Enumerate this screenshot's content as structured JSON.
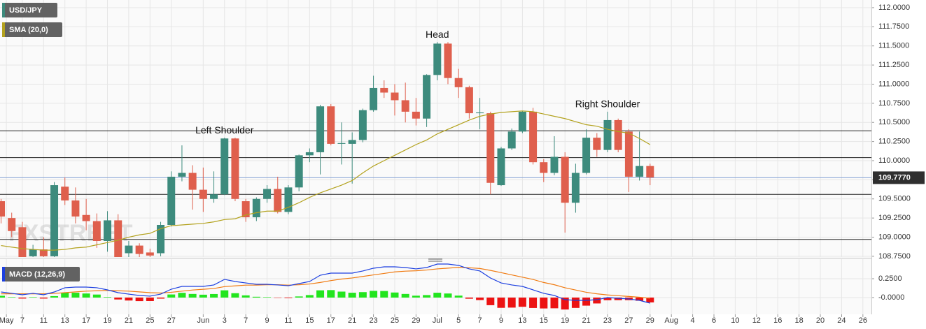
{
  "chart_data": [
    {
      "type": "candlestick",
      "watermark": "FXSTREET",
      "x": [
        -2,
        -1,
        0,
        1,
        2,
        3,
        4,
        5,
        6,
        7,
        8,
        9,
        10,
        11,
        12,
        13,
        14,
        15,
        16,
        17,
        18,
        19,
        20,
        21,
        22,
        23,
        24,
        25,
        26,
        27,
        28,
        29,
        30,
        31,
        32,
        33,
        34,
        35,
        36,
        37,
        38,
        39,
        40,
        41,
        42,
        43,
        44,
        45,
        46,
        47,
        48,
        49,
        50,
        51,
        52,
        53,
        54,
        55,
        56,
        57,
        58,
        59
      ],
      "xlim": [
        -2.1,
        79.8
      ],
      "xticks": [
        {
          "value": -1.5,
          "label": "May"
        },
        {
          "value": 0,
          "label": "7"
        },
        {
          "value": 2,
          "label": "11"
        },
        {
          "value": 4,
          "label": "13"
        },
        {
          "value": 6,
          "label": "17"
        },
        {
          "value": 8,
          "label": "19"
        },
        {
          "value": 10,
          "label": "21"
        },
        {
          "value": 12,
          "label": "25"
        },
        {
          "value": 14,
          "label": "27"
        },
        {
          "value": 17,
          "label": "Jun"
        },
        {
          "value": 19,
          "label": "3"
        },
        {
          "value": 21,
          "label": "7"
        },
        {
          "value": 23,
          "label": "9"
        },
        {
          "value": 25,
          "label": "11"
        },
        {
          "value": 27,
          "label": "15"
        },
        {
          "value": 29,
          "label": "17"
        },
        {
          "value": 31,
          "label": "21"
        },
        {
          "value": 33,
          "label": "23"
        },
        {
          "value": 35,
          "label": "25"
        },
        {
          "value": 37,
          "label": "29"
        },
        {
          "value": 39,
          "label": "Jul"
        },
        {
          "value": 41,
          "label": "5"
        },
        {
          "value": 43,
          "label": "7"
        },
        {
          "value": 45,
          "label": "9"
        },
        {
          "value": 47,
          "label": "13"
        },
        {
          "value": 49,
          "label": "15"
        },
        {
          "value": 51,
          "label": "19"
        },
        {
          "value": 53,
          "label": "21"
        },
        {
          "value": 55,
          "label": "23"
        },
        {
          "value": 57,
          "label": "27"
        },
        {
          "value": 59,
          "label": "29"
        },
        {
          "value": 61,
          "label": "Aug"
        },
        {
          "value": 63,
          "label": "4"
        },
        {
          "value": 65,
          "label": "6"
        },
        {
          "value": 67,
          "label": "10"
        },
        {
          "value": 69,
          "label": "12"
        },
        {
          "value": 71,
          "label": "16"
        },
        {
          "value": 73,
          "label": "18"
        },
        {
          "value": 75,
          "label": "20"
        },
        {
          "value": 77,
          "label": "24"
        },
        {
          "value": 79,
          "label": "26"
        }
      ],
      "ylim": [
        108.74,
        112.1
      ],
      "yticks": [
        {
          "value": 108.75,
          "label": "108.7500"
        },
        {
          "value": 109,
          "label": "109.0000"
        },
        {
          "value": 109.25,
          "label": "109.2500"
        },
        {
          "value": 109.5,
          "label": "109.5000"
        },
        {
          "value": 109.75,
          "label": "109.7500"
        },
        {
          "value": 110,
          "label": "110.0000"
        },
        {
          "value": 110.25,
          "label": "110.2500"
        },
        {
          "value": 110.5,
          "label": "110.5000"
        },
        {
          "value": 110.75,
          "label": "110.7500"
        },
        {
          "value": 111,
          "label": "111.0000"
        },
        {
          "value": 111.25,
          "label": "111.2500"
        },
        {
          "value": 111.5,
          "label": "111.5000"
        },
        {
          "value": 111.75,
          "label": "111.7500"
        },
        {
          "value": 112,
          "label": "112.0000"
        }
      ],
      "grid": true,
      "series": [
        {
          "name": "USD/JPY",
          "type": "candlestick",
          "color": "#3d8b7d",
          "up_color": "#3d8b7d",
          "down_color": "#df5f4d",
          "open": [
            109.47,
            109.25,
            109.13,
            108.75,
            108.84,
            108.75,
            109.66,
            109.48,
            109.29,
            109.21,
            108.95,
            109.22,
            108.79,
            108.89,
            108.8,
            108.79,
            109.16,
            109.79,
            109.84,
            109.62,
            109.5,
            109.56,
            110.29,
            109.47,
            109.26,
            109.5,
            109.63,
            109.33,
            109.65,
            110.07,
            110.11,
            110.71,
            110.22,
            110.22,
            110.27,
            110.66,
            110.95,
            110.89,
            110.79,
            110.64,
            110.55,
            111.12,
            111.53,
            111.08,
            110.96,
            110.62,
            110.62,
            109.68,
            110.16,
            110.38,
            110.64,
            109.98,
            109.84,
            110.05,
            109.45,
            109.84,
            110.3,
            110.14,
            110.53,
            110.38,
            109.79,
            109.93
          ],
          "high": [
            109.5,
            109.32,
            109.2,
            108.9,
            109.0,
            109.72,
            109.78,
            109.65,
            109.5,
            109.31,
            109.34,
            109.3,
            108.95,
            108.92,
            108.85,
            109.2,
            109.86,
            110.2,
            109.94,
            109.91,
            109.86,
            110.3,
            110.3,
            109.5,
            109.52,
            109.68,
            109.79,
            109.68,
            110.08,
            110.16,
            110.73,
            110.74,
            110.5,
            110.37,
            110.68,
            111.11,
            111.05,
            111.0,
            111.02,
            110.82,
            111.13,
            111.55,
            111.55,
            111.2,
            110.98,
            110.82,
            110.64,
            110.18,
            110.42,
            110.65,
            110.69,
            110.02,
            110.32,
            110.11,
            109.96,
            110.41,
            110.36,
            110.64,
            110.55,
            110.41,
            110.38,
            109.96
          ],
          "low": [
            109.18,
            109.0,
            108.7,
            108.7,
            108.7,
            108.7,
            109.42,
            109.18,
            109.09,
            108.86,
            108.81,
            108.7,
            108.72,
            108.72,
            108.72,
            108.75,
            109.14,
            109.73,
            109.36,
            109.33,
            109.45,
            109.55,
            109.47,
            109.2,
            109.21,
            109.45,
            109.31,
            109.3,
            109.6,
            109.98,
            109.82,
            110.2,
            109.95,
            109.7,
            110.24,
            110.64,
            110.82,
            110.59,
            110.5,
            110.46,
            110.44,
            111.05,
            111.0,
            110.82,
            110.55,
            110.41,
            109.56,
            109.67,
            110.14,
            110.36,
            109.95,
            109.72,
            109.81,
            109.06,
            109.32,
            109.82,
            110.05,
            110.11,
            110.11,
            109.59,
            109.74,
            109.68
          ],
          "close": [
            109.27,
            109.08,
            108.74,
            108.84,
            108.75,
            109.68,
            109.48,
            109.27,
            109.21,
            108.95,
            109.22,
            108.74,
            108.89,
            108.78,
            108.76,
            109.16,
            109.79,
            109.84,
            109.62,
            109.5,
            109.56,
            110.29,
            109.5,
            109.26,
            109.5,
            109.63,
            109.33,
            109.65,
            110.07,
            110.11,
            110.71,
            110.22,
            110.23,
            110.27,
            110.66,
            110.95,
            110.89,
            110.79,
            110.64,
            110.55,
            111.12,
            111.53,
            111.08,
            110.96,
            110.62,
            110.63,
            109.71,
            110.16,
            110.38,
            110.64,
            109.98,
            109.84,
            110.05,
            109.45,
            109.84,
            110.3,
            110.14,
            110.53,
            110.14,
            109.79,
            109.93,
            109.78
          ]
        },
        {
          "name": "SMA (20,0)",
          "type": "line",
          "color": "#b3a21e",
          "values": [
            108.89,
            108.87,
            108.85,
            108.84,
            108.83,
            108.83,
            108.84,
            108.86,
            108.87,
            108.9,
            108.93,
            108.96,
            109.0,
            109.03,
            109.05,
            109.11,
            109.15,
            109.16,
            109.17,
            109.18,
            109.2,
            109.23,
            109.24,
            109.29,
            109.32,
            109.34,
            109.34,
            109.39,
            109.45,
            109.52,
            109.58,
            109.63,
            109.68,
            109.74,
            109.84,
            109.93,
            110.0,
            110.07,
            110.14,
            110.21,
            110.27,
            110.35,
            110.41,
            110.47,
            110.53,
            110.58,
            110.61,
            110.63,
            110.64,
            110.65,
            110.64,
            110.61,
            110.58,
            110.55,
            110.51,
            110.47,
            110.45,
            110.41,
            110.38,
            110.36,
            110.29,
            110.21
          ]
        }
      ],
      "levels": [
        110.39,
        110.04,
        109.56,
        108.97
      ],
      "last_price": {
        "value": 109.777,
        "label": "109.7770"
      },
      "annotations": [
        {
          "text": "Left Shoulder",
          "x": 19
        },
        {
          "text": "Head",
          "x": 39
        },
        {
          "text": "Right Shoulder",
          "x": 55
        }
      ]
    },
    {
      "type": "macd",
      "title": "MACD (12,26,9)",
      "ylim": [
        -0.222,
        0.509
      ],
      "yticks": [
        {
          "value": 0,
          "label": "-0.0000"
        },
        {
          "value": 0.25,
          "label": "0.2500"
        }
      ],
      "series": [
        {
          "type": "histogram",
          "up_color": "#22e51e",
          "down_color": "#ec1212",
          "values": [
            0.024,
            0.006,
            -0.013,
            0.006,
            -0.013,
            0.019,
            0.065,
            0.064,
            0.054,
            0.04,
            0.007,
            -0.025,
            -0.039,
            -0.047,
            -0.046,
            -0.014,
            0.041,
            0.063,
            0.048,
            0.038,
            0.047,
            0.096,
            0.058,
            0.029,
            0.011,
            0.006,
            -0.003,
            -0.008,
            0.015,
            0.033,
            0.096,
            0.099,
            0.079,
            0.064,
            0.072,
            0.089,
            0.087,
            0.067,
            0.048,
            0.025,
            0.033,
            0.064,
            0.054,
            0.026,
            -0.015,
            -0.033,
            -0.101,
            -0.136,
            -0.133,
            -0.122,
            -0.138,
            -0.144,
            -0.142,
            -0.158,
            -0.137,
            -0.107,
            -0.078,
            -0.035,
            -0.034,
            -0.034,
            -0.042,
            -0.064
          ]
        },
        {
          "type": "line",
          "color": "#f07b12",
          "values": [
            0.05,
            0.05,
            0.05,
            0.05,
            0.05,
            0.055,
            0.065,
            0.075,
            0.085,
            0.09,
            0.095,
            0.09,
            0.085,
            0.075,
            0.065,
            0.06,
            0.07,
            0.085,
            0.1,
            0.11,
            0.12,
            0.145,
            0.155,
            0.165,
            0.165,
            0.17,
            0.17,
            0.165,
            0.17,
            0.18,
            0.2,
            0.225,
            0.245,
            0.26,
            0.28,
            0.3,
            0.32,
            0.34,
            0.35,
            0.355,
            0.365,
            0.38,
            0.39,
            0.4,
            0.395,
            0.385,
            0.36,
            0.33,
            0.3,
            0.27,
            0.24,
            0.2,
            0.17,
            0.13,
            0.1,
            0.07,
            0.05,
            0.035,
            0.025,
            0.015,
            0.005,
            -0.01
          ]
        },
        {
          "type": "line",
          "color": "#1c3fe0",
          "values": [
            0.074,
            0.056,
            0.037,
            0.056,
            0.037,
            0.074,
            0.13,
            0.139,
            0.139,
            0.13,
            0.102,
            0.065,
            0.046,
            0.028,
            0.019,
            0.046,
            0.111,
            0.148,
            0.148,
            0.148,
            0.167,
            0.241,
            0.213,
            0.194,
            0.176,
            0.176,
            0.167,
            0.157,
            0.185,
            0.213,
            0.296,
            0.324,
            0.324,
            0.324,
            0.352,
            0.389,
            0.407,
            0.407,
            0.398,
            0.38,
            0.398,
            0.444,
            0.444,
            0.426,
            0.38,
            0.352,
            0.259,
            0.194,
            0.167,
            0.148,
            0.102,
            0.056,
            0.028,
            -0.028,
            -0.037,
            -0.037,
            -0.028,
            0,
            -0.009,
            -0.019,
            -0.037,
            -0.074
          ]
        }
      ]
    }
  ]
}
